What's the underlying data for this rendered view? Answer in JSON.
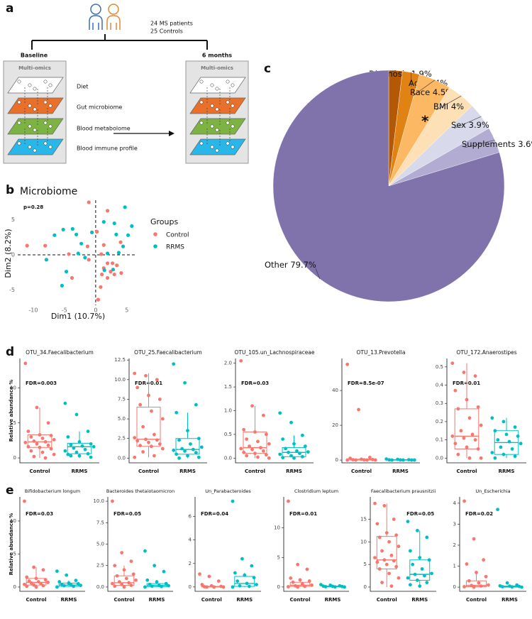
{
  "panel_labels": [
    "a",
    "b",
    "c",
    "d",
    "e"
  ],
  "diagram": {
    "cohort": [
      "24 MS patients",
      "25 Controls"
    ],
    "timepoints": [
      "Baseline",
      "6 months"
    ],
    "box_title": "Multi-omics",
    "layers": [
      "Diet",
      "Gut microbiome",
      "Blood metabolome",
      "Blood immune profile"
    ]
  },
  "chart_data": [
    {
      "type": "pie",
      "categories": [
        "Diagnosis",
        "Age",
        "Race",
        "BMI",
        "Sex",
        "Supplements",
        "Other"
      ],
      "values": [
        1.9,
        2.4,
        4.5,
        4,
        3.9,
        3.6,
        79.7
      ],
      "value_labels": [
        "1.9%",
        "2.4%",
        "4.5%",
        "4%",
        "3.9%",
        "3.6%",
        "79.7%"
      ],
      "colors": [
        "#b35806",
        "#e08214",
        "#fdb863",
        "#fee0b6",
        "#d8daeb",
        "#b2abd2",
        "#8073ac"
      ],
      "annotation": "*"
    },
    {
      "type": "scatter",
      "title": "Microbiome",
      "annotation": "p=0.28",
      "xlabel": "Dim1 (10.7%)",
      "ylabel": "Dim2 (8.2%)",
      "xlim": [
        -12.5,
        6.5
      ],
      "ylim": [
        -7.2,
        7.8
      ],
      "xticks": [
        -10,
        -5,
        0,
        5
      ],
      "yticks": [
        -5,
        0,
        5
      ],
      "vline": 0,
      "hline": 0,
      "legend_title": "Groups",
      "series": [
        {
          "name": "Control",
          "color": "#f8766d",
          "x": [
            -1.1,
            1.9,
            0.2,
            -8.1,
            -1.3,
            1.3,
            4,
            -4.3,
            0.9,
            1.9,
            2.7,
            1.3,
            3.4,
            2.4,
            1,
            3,
            4.1,
            1.9,
            -3.8,
            -1.1,
            0.8,
            0.4,
            -11
          ],
          "y": [
            7.5,
            6.3,
            3.3,
            1.3,
            1.2,
            1.4,
            1.8,
            0.1,
            0.1,
            -1.2,
            -1.2,
            -1.9,
            -1.5,
            -2.4,
            -2.8,
            -2.8,
            -2.6,
            -3.3,
            -3.3,
            -0.7,
            -4.6,
            -6.4,
            1.3
          ]
        },
        {
          "name": "RRMS",
          "color": "#00bfc4",
          "x": [
            4.7,
            -3.7,
            -5.2,
            3,
            1.3,
            3.3,
            5.8,
            5.2,
            -3.1,
            -6.6,
            -2.3,
            4.4,
            -7.9,
            -1.7,
            3.7,
            1.9,
            -4.7,
            -5.4,
            2.8,
            1.4,
            -0.6,
            -2.8
          ],
          "y": [
            6.8,
            3.7,
            3.6,
            4.5,
            4.7,
            2.9,
            4.1,
            2.8,
            2.9,
            2.8,
            1.6,
            1.2,
            -0.7,
            -0.4,
            0.3,
            0.2,
            -2.4,
            -4.4,
            -2.1,
            -2.2,
            3.2,
            0.2
          ]
        }
      ]
    },
    {
      "type": "box",
      "title": "OTU_34.Faecalibacterium",
      "annotation": "FDR=0.003",
      "ylabel": "Relative abundance %",
      "categories": [
        "Control",
        "RRMS"
      ],
      "colors": [
        "#f8766d",
        "#00bfc4"
      ],
      "ylim": [
        -0.7,
        14.2
      ],
      "yticks": [
        0,
        5,
        10
      ],
      "boxes": [
        {
          "whisker_low": 0,
          "q1": 1.5,
          "median": 2.3,
          "q3": 3.3,
          "whisker_high": 7.2,
          "points": [
            13.5,
            7.2,
            5,
            3.8,
            3.3,
            3.2,
            3,
            2.8,
            2.6,
            2.4,
            2.3,
            2.2,
            2,
            1.8,
            1.6,
            1.5,
            1.3,
            1,
            0.8,
            0.5,
            0.2,
            0
          ]
        },
        {
          "whisker_low": 0,
          "q1": 0.6,
          "median": 1.6,
          "q3": 2.1,
          "whisker_high": 3.8,
          "points": [
            7.8,
            6.2,
            3.8,
            3,
            2.3,
            2,
            1.9,
            1.7,
            1.6,
            1.4,
            1.2,
            1,
            0.8,
            0.6,
            0.5,
            0.3,
            0.1,
            0.3
          ]
        }
      ]
    },
    {
      "type": "box",
      "title": "OTU_25.Faecalibacterium",
      "annotation": "FDR=0.01",
      "categories": [
        "Control",
        "RRMS"
      ],
      "colors": [
        "#f8766d",
        "#00bfc4"
      ],
      "ylim": [
        -0.6,
        12.7
      ],
      "yticks": [
        {
          "value": 0,
          "label": "0.0"
        },
        2.5,
        {
          "value": 5,
          "label": "5.0"
        },
        7.5,
        {
          "value": 10,
          "label": "10.0"
        },
        12.5
      ],
      "boxes": [
        {
          "whisker_low": 0.1,
          "q1": 1.5,
          "median": 2.4,
          "q3": 6.5,
          "whisker_high": 10.8,
          "points": [
            10.8,
            10.5,
            10,
            9,
            8,
            7.5,
            6.8,
            6,
            5,
            4,
            3,
            2.6,
            2.4,
            2.3,
            2.2,
            2,
            1.8,
            1.6,
            1.5,
            1.2,
            0.8,
            0.3,
            0.1
          ]
        },
        {
          "whisker_low": 0,
          "q1": 0.5,
          "median": 1.1,
          "q3": 2.5,
          "whisker_high": 5.8,
          "points": [
            12,
            9.6,
            6.8,
            5.8,
            3.5,
            2.5,
            2.3,
            1.8,
            1.4,
            1.2,
            1.1,
            1,
            0.9,
            0.7,
            0.5,
            0.3,
            0.1,
            0
          ]
        }
      ]
    },
    {
      "type": "box",
      "title": "OTU_105.un_Lachnospiraceae",
      "annotation": "FDR=0.03",
      "categories": [
        "Control",
        "RRMS"
      ],
      "colors": [
        "#f8766d",
        "#00bfc4"
      ],
      "ylim": [
        -0.1,
        2.1
      ],
      "yticks": [
        {
          "value": 0,
          "label": "0.0"
        },
        0.5,
        {
          "value": 1,
          "label": "1.0"
        },
        1.5,
        {
          "value": 2,
          "label": "2.0"
        }
      ],
      "boxes": [
        {
          "whisker_low": 0,
          "q1": 0.1,
          "median": 0.22,
          "q3": 0.55,
          "whisker_high": 1.1,
          "points": [
            2.05,
            1.1,
            0.9,
            0.6,
            0.55,
            0.5,
            0.4,
            0.35,
            0.3,
            0.25,
            0.22,
            0.2,
            0.18,
            0.15,
            0.12,
            0.1,
            0.07,
            0.05,
            0.02,
            0
          ]
        },
        {
          "whisker_low": 0,
          "q1": 0.03,
          "median": 0.12,
          "q3": 0.22,
          "whisker_high": 0.48,
          "points": [
            0.95,
            0.75,
            0.48,
            0.4,
            0.3,
            0.25,
            0.2,
            0.15,
            0.13,
            0.12,
            0.1,
            0.08,
            0.05,
            0.03,
            0.01,
            0
          ]
        }
      ]
    },
    {
      "type": "box",
      "title": "OTU_13.Prevotella",
      "annotation": "FDR=8.5e-07",
      "categories": [
        "Control",
        "RRMS"
      ],
      "colors": [
        "#f8766d",
        "#00bfc4"
      ],
      "ylim": [
        -1.6,
        58.4
      ],
      "yticks": [
        0,
        20,
        40
      ],
      "boxes": [
        {
          "whisker_low": 0,
          "q1": 0,
          "median": 0.1,
          "q3": 0.5,
          "whisker_high": 0.8,
          "points": [
            55,
            29,
            1.5,
            1,
            0.5,
            0.3,
            0.2,
            0.1,
            0,
            0,
            0,
            0
          ]
        },
        {
          "whisker_low": 0,
          "q1": 0,
          "median": 0.05,
          "q3": 0.2,
          "whisker_high": 0.5,
          "points": [
            0.6,
            0.4,
            0.2,
            0.1,
            0.05,
            0,
            0,
            0,
            0
          ]
        }
      ]
    },
    {
      "type": "box",
      "title": "OTU_172.Anaerostipes",
      "annotation": "FDR=0.01",
      "categories": [
        "Control",
        "RRMS"
      ],
      "colors": [
        "#f8766d",
        "#00bfc4"
      ],
      "ylim": [
        -0.026,
        0.546
      ],
      "yticks": [
        {
          "value": 0,
          "label": "0.0"
        },
        0.1,
        0.2,
        0.3,
        0.4,
        0.5
      ],
      "boxes": [
        {
          "whisker_low": 0,
          "q1": 0.05,
          "median": 0.12,
          "q3": 0.27,
          "whisker_high": 0.52,
          "points": [
            0.52,
            0.47,
            0.45,
            0.37,
            0.32,
            0.28,
            0.27,
            0.22,
            0.18,
            0.15,
            0.13,
            0.12,
            0.11,
            0.1,
            0.08,
            0.06,
            0.05,
            0.02,
            0,
            0
          ]
        },
        {
          "whisker_low": 0,
          "q1": 0.02,
          "median": 0.085,
          "q3": 0.15,
          "whisker_high": 0.22,
          "points": [
            0.22,
            0.2,
            0.17,
            0.15,
            0.13,
            0.12,
            0.1,
            0.09,
            0.08,
            0.06,
            0.05,
            0.03,
            0.02,
            0.01,
            0
          ]
        }
      ]
    },
    {
      "type": "box",
      "title": "Bifidobacterium longum",
      "annotation": "FDR=0.03",
      "ylabel": "Relative abundance %",
      "categories": [
        "Control",
        "RRMS"
      ],
      "colors": [
        "#f8766d",
        "#00bfc4"
      ],
      "ylim": [
        -0.65,
        13.65
      ],
      "yticks": [
        0,
        5,
        10
      ],
      "boxes": [
        {
          "whisker_low": 0,
          "q1": 0.3,
          "median": 0.7,
          "q3": 1.3,
          "whisker_high": 3,
          "points": [
            13,
            3,
            2.6,
            1.5,
            1.3,
            1.1,
            0.9,
            0.8,
            0.7,
            0.6,
            0.5,
            0.4,
            0.3,
            0.2,
            0.1,
            0
          ]
        },
        {
          "whisker_low": 0,
          "q1": 0.1,
          "median": 0.3,
          "q3": 0.6,
          "whisker_high": 1,
          "points": [
            2.4,
            1.8,
            1,
            0.8,
            0.6,
            0.5,
            0.4,
            0.3,
            0.25,
            0.2,
            0.1,
            0
          ]
        }
      ]
    },
    {
      "type": "box",
      "title": "Bacteroides thetaiotaomicron",
      "annotation": "FDR=0.05",
      "categories": [
        "Control",
        "RRMS"
      ],
      "colors": [
        "#f8766d",
        "#00bfc4"
      ],
      "ylim": [
        -0.5,
        10.5
      ],
      "yticks": [
        {
          "value": 0,
          "label": "0.0"
        },
        2.5,
        {
          "value": 5,
          "label": "5.0"
        },
        7.5,
        {
          "value": 10,
          "label": "10.0"
        }
      ],
      "boxes": [
        {
          "whisker_low": 0,
          "q1": 0.2,
          "median": 0.5,
          "q3": 1.3,
          "whisker_high": 2.5,
          "points": [
            10,
            4,
            3,
            2.5,
            2,
            1.5,
            1.3,
            1,
            0.8,
            0.6,
            0.5,
            0.4,
            0.3,
            0.2,
            0.1,
            0
          ]
        },
        {
          "whisker_low": 0,
          "q1": 0.05,
          "median": 0.2,
          "q3": 0.4,
          "whisker_high": 0.8,
          "points": [
            4.2,
            2.5,
            1.8,
            0.8,
            0.6,
            0.4,
            0.3,
            0.2,
            0.15,
            0.1,
            0.05,
            0
          ]
        }
      ]
    },
    {
      "type": "box",
      "title": "Un_Parabacteroides",
      "annotation": "FDR=0.04",
      "categories": [
        "Control",
        "RRMS"
      ],
      "colors": [
        "#f8766d",
        "#00bfc4"
      ],
      "ylim": [
        -0.37,
        7.67
      ],
      "yticks": [
        0,
        2,
        4,
        6
      ],
      "boxes": [
        {
          "whisker_low": 0,
          "q1": 0,
          "median": 0.02,
          "q3": 0.05,
          "whisker_high": 0.2,
          "points": [
            1.1,
            0.9,
            0.5,
            0.2,
            0.1,
            0.05,
            0.02,
            0,
            0,
            0
          ]
        },
        {
          "whisker_low": 0,
          "q1": 0.05,
          "median": 0.3,
          "q3": 0.9,
          "whisker_high": 1.2,
          "points": [
            7.3,
            2.4,
            1.8,
            1.2,
            1,
            0.8,
            0.5,
            0.3,
            0.2,
            0.1,
            0.05,
            0
          ]
        }
      ]
    },
    {
      "type": "box",
      "title": "Clostridium leptum",
      "annotation": "FDR=0.01",
      "categories": [
        "Control",
        "RRMS"
      ],
      "colors": [
        "#f8766d",
        "#00bfc4"
      ],
      "ylim": [
        -0.73,
        15.23
      ],
      "yticks": [
        0,
        5,
        10
      ],
      "boxes": [
        {
          "whisker_low": 0,
          "q1": 0.1,
          "median": 0.3,
          "q3": 0.8,
          "whisker_high": 1.5,
          "points": [
            14.5,
            3.8,
            3,
            1.5,
            1.2,
            1,
            0.8,
            0.5,
            0.3,
            0.2,
            0.1,
            0.05,
            0
          ]
        },
        {
          "whisker_low": 0,
          "q1": 0.02,
          "median": 0.08,
          "q3": 0.15,
          "whisker_high": 0.4,
          "points": [
            0.4,
            0.3,
            0.2,
            0.15,
            0.1,
            0.08,
            0.05,
            0.02,
            0
          ]
        }
      ]
    },
    {
      "type": "box",
      "title": "Faecalibacterium prausnitzii",
      "annotation": "FDR=0.05",
      "categories": [
        "Control",
        "RRMS"
      ],
      "colors": [
        "#f8766d",
        "#00bfc4"
      ],
      "ylim": [
        -0.95,
        19.95
      ],
      "yticks": [
        0,
        5,
        10,
        15
      ],
      "boxes": [
        {
          "whisker_low": 0,
          "q1": 4,
          "median": 6,
          "q3": 11.2,
          "whisker_high": 18.5,
          "points": [
            18.5,
            18,
            15,
            14,
            12,
            11.5,
            11,
            10,
            9,
            8,
            7,
            6.5,
            6,
            5.8,
            5.5,
            5,
            4.5,
            4,
            3,
            2,
            1,
            0.2
          ]
        },
        {
          "whisker_low": 0.2,
          "q1": 1.5,
          "median": 2.8,
          "q3": 6,
          "whisker_high": 12.5,
          "points": [
            14.5,
            12.5,
            11,
            8,
            6.5,
            6,
            5,
            4,
            3,
            2.8,
            2.5,
            2,
            1.5,
            1,
            0.5,
            0.2
          ]
        }
      ]
    },
    {
      "type": "box",
      "title": "Un_Escherichia",
      "annotation": "FDR=0.02",
      "categories": [
        "Control",
        "RRMS"
      ],
      "colors": [
        "#f8766d",
        "#00bfc4"
      ],
      "ylim": [
        -0.2,
        4.3
      ],
      "yticks": [
        0,
        1,
        2,
        3,
        4
      ],
      "boxes": [
        {
          "whisker_low": 0,
          "q1": 0.02,
          "median": 0.08,
          "q3": 0.3,
          "whisker_high": 0.7,
          "points": [
            4.1,
            2.3,
            1.3,
            1.1,
            0.7,
            0.5,
            0.3,
            0.2,
            0.1,
            0.08,
            0.05,
            0.02,
            0
          ]
        },
        {
          "whisker_low": 0,
          "q1": 0,
          "median": 0.02,
          "q3": 0.05,
          "whisker_high": 0.1,
          "points": [
            3.7,
            0.2,
            0.1,
            0.06,
            0.05,
            0.03,
            0.02,
            0.01,
            0
          ]
        }
      ]
    }
  ]
}
